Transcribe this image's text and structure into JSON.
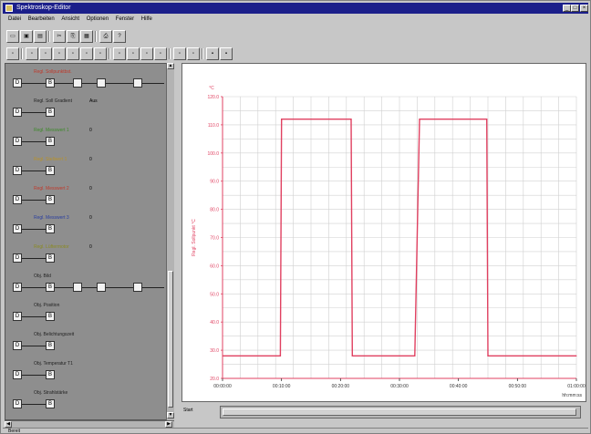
{
  "window": {
    "title": "Spektroskop-Editor",
    "buttons": {
      "minimize": "_",
      "maximize": "□",
      "close": "×"
    }
  },
  "menu": [
    "Datei",
    "Bearbeiten",
    "Ansicht",
    "Optionen",
    "Fenster",
    "Hilfe"
  ],
  "toolbar1": [
    {
      "name": "new-file-button",
      "glyph": "▭"
    },
    {
      "name": "open-button",
      "glyph": "▣"
    },
    {
      "name": "save-button",
      "glyph": "▤"
    },
    {
      "name": "cut-button",
      "glyph": "✂"
    },
    {
      "name": "copy-button",
      "glyph": "⎘"
    },
    {
      "name": "paste-button",
      "glyph": "▦"
    },
    {
      "name": "print-button",
      "glyph": "⎙"
    },
    {
      "name": "help-button",
      "glyph": "?"
    }
  ],
  "toolbar2": [
    {
      "name": "tool-select-button",
      "glyph": "▫"
    },
    {
      "name": "tool-1-button",
      "glyph": "▫"
    },
    {
      "name": "tool-2-button",
      "glyph": "▫"
    },
    {
      "name": "tool-3-button",
      "glyph": "▫"
    },
    {
      "name": "tool-4-button",
      "glyph": "▫"
    },
    {
      "name": "tool-5-button",
      "glyph": "▫"
    },
    {
      "name": "tool-6-button",
      "glyph": "▫"
    },
    {
      "name": "tool-7-button",
      "glyph": "▫"
    },
    {
      "name": "tool-8-button",
      "glyph": "▫"
    },
    {
      "name": "tool-9-button",
      "glyph": "▫"
    },
    {
      "name": "tool-10-button",
      "glyph": "▫"
    },
    {
      "name": "tool-11-button",
      "glyph": "▫"
    },
    {
      "name": "tool-12-button",
      "glyph": "▫"
    },
    {
      "name": "highlight-1-button",
      "glyph": "▪"
    },
    {
      "name": "highlight-2-button",
      "glyph": "▪"
    }
  ],
  "left_rows": [
    {
      "label": "Regl. Sollpunktbst.",
      "color": "#c0392b",
      "value": "",
      "chain": true
    },
    {
      "label": "Regl. Soll Gradient",
      "color": "#222222",
      "value": "Aus",
      "chain": false
    },
    {
      "label": "Regl. Messwert 1",
      "color": "#3d8a2a",
      "value": "0",
      "chain": false
    },
    {
      "label": "Regl. Stellwert 1",
      "color": "#b8922a",
      "value": "0",
      "chain": false
    },
    {
      "label": "Regl. Messwert 2",
      "color": "#c0392b",
      "value": "0",
      "chain": false
    },
    {
      "label": "Regl. Messwert 3",
      "color": "#2a3ea0",
      "value": "0",
      "chain": false
    },
    {
      "label": "Regl. Lüftermotor",
      "color": "#8a8a22",
      "value": "0",
      "chain": false
    },
    {
      "label": "Obj. Bild",
      "color": "#222222",
      "value": "",
      "chain": true
    },
    {
      "label": "Obj. Position",
      "color": "#222222",
      "value": "",
      "chain": false
    },
    {
      "label": "Obj. Belichtungszeit",
      "color": "#222222",
      "value": "",
      "chain": false
    },
    {
      "label": "Obj. Temperatur T1",
      "color": "#222222",
      "value": "",
      "chain": false
    },
    {
      "label": "Obj. Strahlstärke",
      "color": "#222222",
      "value": "",
      "chain": false
    }
  ],
  "colors": {
    "trace": "#e04060",
    "grid": "#d0d0d0",
    "axis": "#e04060"
  },
  "chart_data": {
    "type": "line",
    "ylabel": "Regl. Sollpunkt °C",
    "yunit": "°C",
    "ytick_labels": [
      "120.0",
      "110.0",
      "100.0",
      "90.0",
      "80.0",
      "70.0",
      "60.0",
      "50.0",
      "40.0",
      "30.0",
      "20.0"
    ],
    "ylim": [
      20,
      120
    ],
    "xtick_labels": [
      "00:00:00",
      "00:10:00",
      "00:20:00",
      "00:30:00",
      "00:40:00",
      "00:50:00",
      "01:00:00"
    ],
    "xunit": "hh:mm:ss",
    "xlim_minutes": [
      0,
      60
    ],
    "grid": true,
    "series": [
      {
        "x_minutes": [
          0,
          9.8,
          10.0,
          21.8,
          22.0,
          32.6,
          33.4,
          44.8,
          45.0,
          60
        ],
        "y": [
          28,
          28,
          112,
          112,
          28,
          28,
          112,
          112,
          28,
          28
        ]
      }
    ]
  },
  "hscroll_label": "Start",
  "status": "Bereit"
}
